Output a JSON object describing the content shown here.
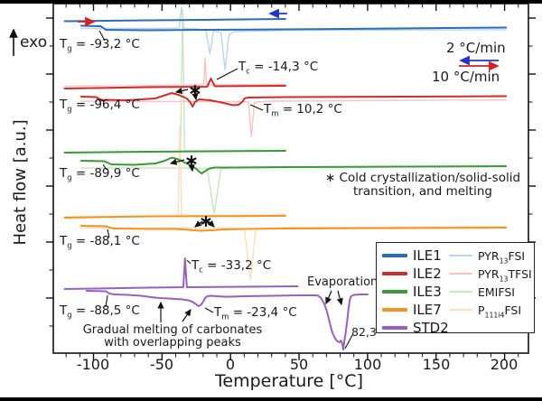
{
  "figure": {
    "bg": "#ffffff",
    "text_color": "#1a1a1a",
    "border_bar_color": "#000000"
  },
  "axis": {
    "x_label": "Temperature [°C]",
    "y_label": "Heat flow [a.u.]",
    "exo_label": "exo",
    "x_tick_labels": [
      "-100",
      "-50",
      "0",
      "50",
      "100",
      "150",
      "200"
    ]
  },
  "scan_rates": {
    "slow": "2 °C/min",
    "fast": "10 °C/min"
  },
  "symbols": {
    "asterisk": "∗"
  },
  "annotations": {
    "t_prefix": "T",
    "g_sub": "g",
    "c_sub": "c",
    "m_sub": "m",
    "ile1_tg": " = -93,2 °C",
    "ile2_tg": " = -96,4 °C",
    "ile2_tc": " = -14,3 °C",
    "ile2_tm": " = 10,2 °C",
    "ile3_tg": " = -89,9 °C",
    "ile7_tg": " = -88,1 °C",
    "std2_tg": " = -88,5 °C",
    "std2_tc": " = -33,2 °C",
    "std2_tm": " = -23,4 °C",
    "star_note_line1": "∗ Cold crystallization/solid-solid",
    "star_note_line2": "transition, and melting",
    "gradual_line1": "Gradual melting of carbonates",
    "gradual_line2": "with overlapping peaks",
    "evaporation": "Evaporation",
    "evaporation_peak": "82,3"
  },
  "legend": {
    "items": [
      {
        "pre": "ILE1",
        "sub": "",
        "post": "",
        "color": "#2b6cb5",
        "style": "thick"
      },
      {
        "pre": "ILE2",
        "sub": "",
        "post": "",
        "color": "#cd2d2d",
        "style": "thick"
      },
      {
        "pre": "ILE3",
        "sub": "",
        "post": "",
        "color": "#3a9a3a",
        "style": "thick"
      },
      {
        "pre": "ILE7",
        "sub": "",
        "post": "",
        "color": "#f6921e",
        "style": "thick"
      },
      {
        "pre": "STD2",
        "sub": "",
        "post": "",
        "color": "#9660c2",
        "style": "thick"
      },
      {
        "pre": "PYR",
        "sub": "13",
        "post": "FSI",
        "color": "#b9d5ef",
        "style": "thin"
      },
      {
        "pre": "PYR",
        "sub": "13",
        "post": "TFSI",
        "color": "#f6c4c1",
        "style": "thin"
      },
      {
        "pre": "EMIFSI",
        "sub": "",
        "post": "",
        "color": "#c9e5c2",
        "style": "thin"
      },
      {
        "pre": "P",
        "sub": "111i4",
        "post": "FSI",
        "color": "#fbdfba",
        "style": "thin"
      }
    ]
  },
  "chart_data": {
    "type": "line",
    "xlabel": "Temperature [°C]",
    "ylabel": "Heat flow [a.u.]",
    "xlim": [
      -125,
      217
    ],
    "x_ticks": [
      -100,
      -50,
      0,
      50,
      100,
      150,
      200
    ],
    "y_axis_note": "arbitrary units; curves vertically offset, exothermic up",
    "scan_rates": {
      "cooling": "2 °C/min",
      "heating": "10 °C/min"
    },
    "transitions": [
      {
        "sample": "ILE1",
        "Tg_C": -93.2
      },
      {
        "sample": "ILE2",
        "Tg_C": -96.4,
        "Tc_C": -14.3,
        "Tm_C": 10.2
      },
      {
        "sample": "ILE3",
        "Tg_C": -89.9
      },
      {
        "sample": "ILE7",
        "Tg_C": -88.1
      },
      {
        "sample": "STD2",
        "Tg_C": -88.5,
        "Tc_C": -33.2,
        "Tm_C": -23.4,
        "evaporation_peak_C": 82.3
      }
    ],
    "series_points_note": "points are [temperature_C, y_px] with y in 444px image space (a.u.)",
    "series": [
      {
        "name": "PYR13FSI",
        "color": "#b9d5ef",
        "width": 1.4,
        "points": [
          [
            -109,
            31.5
          ],
          [
            -50,
            31.5
          ],
          [
            -37.5,
            31
          ],
          [
            -35.7,
            8
          ],
          [
            -34,
            31.5
          ],
          [
            -25,
            32
          ],
          [
            -18,
            33
          ],
          [
            -15,
            60
          ],
          [
            -12.5,
            34
          ],
          [
            -7,
            36
          ],
          [
            -4,
            77
          ],
          [
            -1,
            38
          ],
          [
            3,
            35
          ],
          [
            40,
            33.5
          ],
          [
            201,
            33
          ]
        ]
      },
      {
        "name": "PYR13TFSI_cooling",
        "color": "#f6c4c1",
        "width": 1.4,
        "points": [
          [
            -121,
            95.5
          ],
          [
            -40,
            94.5
          ],
          [
            -19.5,
            94
          ],
          [
            -18.5,
            64
          ],
          [
            -17.5,
            94
          ],
          [
            40,
            93.5
          ]
        ]
      },
      {
        "name": "PYR13TFSI_heating",
        "color": "#f6c4c1",
        "width": 1.4,
        "points": [
          [
            -109,
            112
          ],
          [
            -20,
            112.5
          ],
          [
            8,
            112.5
          ],
          [
            13,
            113
          ],
          [
            15.2,
            151
          ],
          [
            17.5,
            113
          ],
          [
            30,
            112
          ],
          [
            201,
            110.5
          ]
        ]
      },
      {
        "name": "EMIFSI_cooling",
        "color": "#c9e5c2",
        "width": 1.4,
        "points": [
          [
            -121,
            168.5
          ],
          [
            -40,
            167.5
          ],
          [
            -36.5,
            167
          ],
          [
            -35,
            12
          ],
          [
            -33.5,
            167
          ],
          [
            40,
            166.5
          ]
        ]
      },
      {
        "name": "EMIFSI_heating",
        "color": "#c9e5c2",
        "width": 1.4,
        "points": [
          [
            -109,
            186
          ],
          [
            -30,
            186
          ],
          [
            -17,
            186.5
          ],
          [
            -11.9,
            236
          ],
          [
            -7,
            187
          ],
          [
            0,
            186
          ],
          [
            40,
            185.5
          ],
          [
            201,
            184.5
          ]
        ]
      },
      {
        "name": "P111i4FSI_cooling",
        "color": "#fbdfba",
        "width": 1.4,
        "points": [
          [
            -121,
            240
          ],
          [
            -40,
            239
          ],
          [
            -38.3,
            239
          ],
          [
            -37,
            140
          ],
          [
            -35.7,
            239
          ],
          [
            40,
            238
          ]
        ]
      },
      {
        "name": "P111i4FSI_heating",
        "color": "#fbdfba",
        "width": 1.4,
        "points": [
          [
            -109,
            252.5
          ],
          [
            0,
            252.5
          ],
          [
            10,
            253
          ],
          [
            14.5,
            310
          ],
          [
            18.5,
            253
          ],
          [
            40,
            252
          ],
          [
            201,
            251
          ]
        ]
      },
      {
        "name": "ILE1_cooling_2Cmin",
        "color": "#2b6cb5",
        "width": 2,
        "points": [
          [
            -121,
            23.5
          ],
          [
            -60,
            22.5
          ],
          [
            -20,
            22
          ],
          [
            40,
            21
          ]
        ]
      },
      {
        "name": "ILE1_heating_10Cmin",
        "color": "#2b6cb5",
        "width": 2,
        "points": [
          [
            -109,
            28.5
          ],
          [
            -95,
            29
          ],
          [
            -93.2,
            30.5
          ],
          [
            -91,
            33
          ],
          [
            -60,
            33.5
          ],
          [
            -20,
            33
          ],
          [
            40,
            32.5
          ],
          [
            120,
            31.5
          ],
          [
            201,
            30.5
          ]
        ]
      },
      {
        "name": "ILE2_cooling_2Cmin",
        "color": "#cd2d2d",
        "width": 2,
        "points": [
          [
            -121,
            98
          ],
          [
            -60,
            96.5
          ],
          [
            -17,
            96
          ],
          [
            -14.3,
            87
          ],
          [
            -11.5,
            95.5
          ],
          [
            40,
            95
          ]
        ]
      },
      {
        "name": "ILE2_heating_10Cmin",
        "color": "#cd2d2d",
        "width": 2,
        "points": [
          [
            -109,
            107
          ],
          [
            -98,
            107.5
          ],
          [
            -96.4,
            109
          ],
          [
            -94,
            110.5
          ],
          [
            -75,
            111
          ],
          [
            -55,
            109
          ],
          [
            -47,
            105
          ],
          [
            -42.8,
            103
          ],
          [
            -38,
            105
          ],
          [
            -32,
            109
          ],
          [
            -29.5,
            113
          ],
          [
            -27.7,
            118
          ],
          [
            -26,
            113
          ],
          [
            -23,
            110
          ],
          [
            -15,
            111
          ],
          [
            -5,
            114
          ],
          [
            2,
            116.5
          ],
          [
            6,
            116
          ],
          [
            9,
            112
          ],
          [
            10.2,
            109
          ],
          [
            13,
            108
          ],
          [
            40,
            107.5
          ],
          [
            201,
            106.5
          ]
        ]
      },
      {
        "name": "ILE3_cooling_2Cmin",
        "color": "#3a9a3a",
        "width": 2,
        "points": [
          [
            -121,
            169
          ],
          [
            -60,
            168
          ],
          [
            40,
            167
          ]
        ]
      },
      {
        "name": "ILE3_heating_10Cmin",
        "color": "#3a9a3a",
        "width": 2,
        "points": [
          [
            -109,
            178
          ],
          [
            -92,
            178.5
          ],
          [
            -89.9,
            180
          ],
          [
            -87,
            182
          ],
          [
            -70,
            182.5
          ],
          [
            -55,
            181
          ],
          [
            -48,
            178
          ],
          [
            -42.8,
            174.5
          ],
          [
            -38,
            176.5
          ],
          [
            -32,
            181
          ],
          [
            -28,
            184
          ],
          [
            -25,
            187
          ],
          [
            -22.5,
            190.5
          ],
          [
            -21,
            192
          ],
          [
            -19,
            190
          ],
          [
            -16,
            187
          ],
          [
            -12,
            185.5
          ],
          [
            0,
            185.5
          ],
          [
            40,
            185
          ],
          [
            201,
            184
          ]
        ]
      },
      {
        "name": "ILE7_cooling_2Cmin",
        "color": "#f6921e",
        "width": 2,
        "points": [
          [
            -121,
            241
          ],
          [
            -60,
            239.5
          ],
          [
            40,
            239
          ]
        ]
      },
      {
        "name": "ILE7_heating_10Cmin",
        "color": "#f6921e",
        "width": 2,
        "points": [
          [
            -109,
            250
          ],
          [
            -90.5,
            250.5
          ],
          [
            -88.1,
            252
          ],
          [
            -85,
            253
          ],
          [
            -60,
            253.5
          ],
          [
            -40,
            253.5
          ],
          [
            -30,
            254.5
          ],
          [
            -22,
            255.5
          ],
          [
            -14,
            255
          ],
          [
            -5,
            254
          ],
          [
            10,
            253.5
          ],
          [
            40,
            253
          ],
          [
            201,
            252
          ]
        ]
      },
      {
        "name": "STD2_cooling_2Cmin",
        "color": "#9660c2",
        "width": 2,
        "points": [
          [
            -121,
            320
          ],
          [
            -60,
            318.5
          ],
          [
            -34.5,
            318
          ],
          [
            -33.2,
            286
          ],
          [
            -31.9,
            318
          ],
          [
            49,
            317
          ]
        ]
      },
      {
        "name": "STD2_heating_10Cmin",
        "color": "#9660c2",
        "width": 2,
        "points": [
          [
            -105,
            322
          ],
          [
            -91,
            322.5
          ],
          [
            -88.5,
            325
          ],
          [
            -85,
            326
          ],
          [
            -75,
            326.5
          ],
          [
            -65,
            327.5
          ],
          [
            -58,
            329
          ],
          [
            -52,
            330
          ],
          [
            -45,
            330.5
          ],
          [
            -40,
            331
          ],
          [
            -35,
            331.5
          ],
          [
            -31,
            332.5
          ],
          [
            -28,
            334
          ],
          [
            -25.5,
            336.5
          ],
          [
            -23.4,
            339
          ],
          [
            -21.5,
            337.5
          ],
          [
            -20,
            334
          ],
          [
            -18.5,
            330
          ],
          [
            -17,
            328
          ],
          [
            -14,
            327.5
          ],
          [
            -10,
            328
          ],
          [
            -5,
            328.5
          ],
          [
            0,
            328.5
          ],
          [
            10,
            328
          ],
          [
            30,
            327.5
          ],
          [
            50,
            327
          ],
          [
            62,
            327
          ],
          [
            64,
            327.5
          ],
          [
            66,
            330
          ],
          [
            68,
            335
          ],
          [
            70,
            343
          ],
          [
            72,
            355
          ],
          [
            74,
            367
          ],
          [
            76,
            374
          ],
          [
            78,
            378
          ],
          [
            79.5,
            379
          ],
          [
            80.5,
            377
          ],
          [
            81.5,
            380
          ],
          [
            82.3,
            387
          ],
          [
            83,
            378
          ],
          [
            84,
            369
          ],
          [
            85,
            357
          ],
          [
            86,
            343
          ],
          [
            87,
            332
          ],
          [
            88,
            328
          ],
          [
            90,
            326.5
          ],
          [
            95,
            326
          ],
          [
            100,
            326
          ]
        ]
      }
    ]
  }
}
